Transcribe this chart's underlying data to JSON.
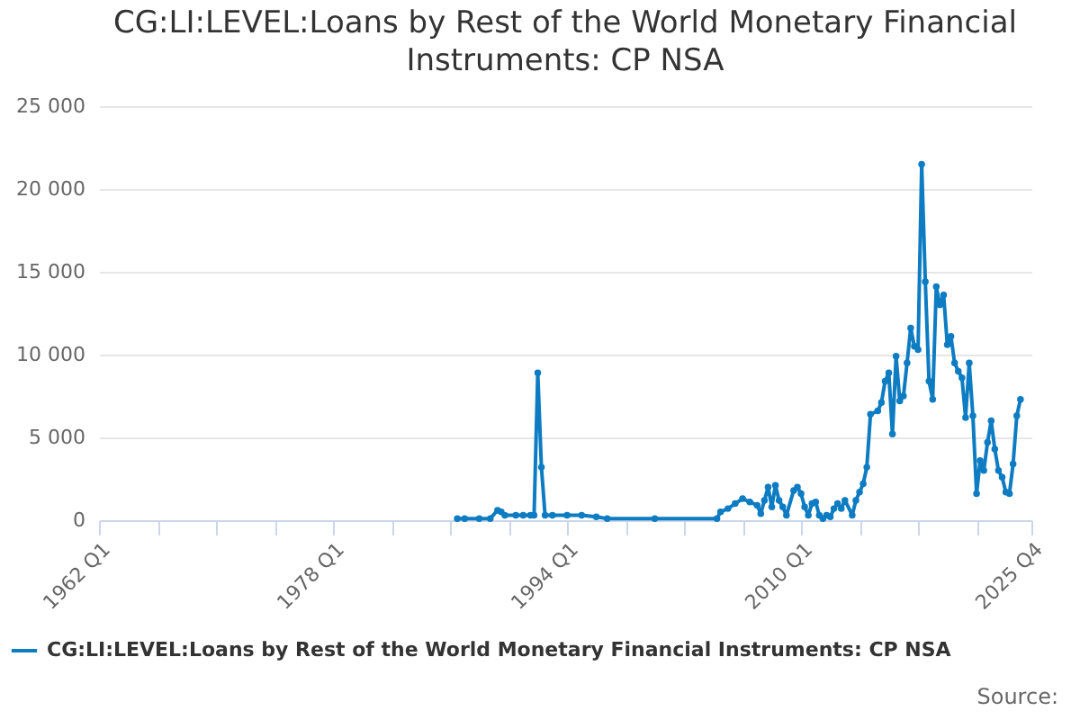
{
  "chart_data": {
    "type": "line",
    "title": "CG:LI:LEVEL:Loans by Rest of the World Monetary Financial Instruments: CP NSA",
    "annotations": [
      "Source:"
    ],
    "x": [
      "1986-07",
      "1987-01",
      "1988-01",
      "1988-10",
      "1989-04",
      "1989-07",
      "1989-10",
      "1990-07",
      "1991-01",
      "1991-07",
      "1991-10",
      "1992-01",
      "1992-04",
      "1992-07",
      "1993-01",
      "1994-01",
      "1995-01",
      "1996-01",
      "1996-10",
      "2000-01",
      "2004-04",
      "2004-07",
      "2005-01",
      "2005-07",
      "2006-01",
      "2006-07",
      "2007-01",
      "2007-04",
      "2007-07",
      "2007-10",
      "2008-01",
      "2008-04",
      "2008-07",
      "2008-10",
      "2009-01",
      "2009-07",
      "2009-10",
      "2010-01",
      "2010-04",
      "2010-07",
      "2010-10",
      "2011-01",
      "2011-04",
      "2011-07",
      "2011-10",
      "2012-01",
      "2012-04",
      "2012-07",
      "2012-10",
      "2013-01",
      "2013-07",
      "2013-10",
      "2014-01",
      "2014-04",
      "2014-07",
      "2014-10",
      "2015-04",
      "2015-07",
      "2015-10",
      "2016-01",
      "2016-04",
      "2016-07",
      "2016-10",
      "2017-01",
      "2017-04",
      "2017-07",
      "2017-10",
      "2018-01",
      "2018-04",
      "2018-07",
      "2018-10",
      "2019-01",
      "2019-04",
      "2019-07",
      "2019-10",
      "2020-01",
      "2020-04",
      "2020-07",
      "2020-10",
      "2021-01",
      "2021-04",
      "2021-07",
      "2021-10",
      "2022-01",
      "2022-04",
      "2022-07",
      "2022-10",
      "2023-01",
      "2023-04",
      "2023-07",
      "2023-10",
      "2024-01",
      "2024-04",
      "2024-07",
      "2024-10",
      "2025-01"
    ],
    "series": [
      {
        "name": "CG:LI:LEVEL:Loans by Rest of the World Monetary Financial Instruments: CP NSA",
        "color": "#0e7cc2",
        "values": [
          100,
          100,
          100,
          100,
          600,
          500,
          300,
          300,
          300,
          300,
          300,
          8900,
          3200,
          300,
          300,
          300,
          300,
          200,
          100,
          100,
          100,
          500,
          700,
          1000,
          1300,
          1100,
          900,
          400,
          1200,
          2000,
          800,
          2100,
          1200,
          800,
          300,
          1800,
          2000,
          1600,
          800,
          300,
          1000,
          1100,
          300,
          100,
          300,
          200,
          700,
          1000,
          700,
          1200,
          300,
          1200,
          1700,
          2200,
          3200,
          6400,
          6600,
          7100,
          8400,
          8900,
          5200,
          9900,
          7200,
          7500,
          9500,
          11600,
          10500,
          10300,
          21500,
          14400,
          8400,
          7300,
          14100,
          13000,
          13600,
          10600,
          11100,
          9500,
          9000,
          8600,
          6200,
          9500,
          6300,
          1600,
          3600,
          3000,
          4700,
          6000,
          4300,
          3000,
          2600,
          1700,
          1600,
          3400,
          6300,
          7300
        ]
      }
    ],
    "xlim": [
      "1962-01",
      "2025-10"
    ],
    "xticks": [
      {
        "value": "1962-01",
        "label": "1962 Q1"
      },
      {
        "value": "1966-01",
        "label": null
      },
      {
        "value": "1970-01",
        "label": null
      },
      {
        "value": "1974-01",
        "label": null
      },
      {
        "value": "1978-01",
        "label": "1978 Q1"
      },
      {
        "value": "1982-01",
        "label": null
      },
      {
        "value": "1986-01",
        "label": null
      },
      {
        "value": "1990-01",
        "label": null
      },
      {
        "value": "1994-01",
        "label": "1994 Q1"
      },
      {
        "value": "1998-01",
        "label": null
      },
      {
        "value": "2002-01",
        "label": null
      },
      {
        "value": "2006-01",
        "label": null
      },
      {
        "value": "2010-01",
        "label": "2010 Q1"
      },
      {
        "value": "2014-01",
        "label": null
      },
      {
        "value": "2018-01",
        "label": null
      },
      {
        "value": "2022-01",
        "label": null
      },
      {
        "value": "2025-10",
        "label": "2025 Q4"
      }
    ],
    "ylim": [
      0,
      25000
    ],
    "yticks": [
      {
        "value": 0,
        "label": "0"
      },
      {
        "value": 5000,
        "label": "5 000"
      },
      {
        "value": 10000,
        "label": "10 000"
      },
      {
        "value": 15000,
        "label": "15 000"
      },
      {
        "value": 20000,
        "label": "20 000"
      },
      {
        "value": 25000,
        "label": "25 000"
      }
    ],
    "grid": "y",
    "legend": "bottom",
    "marker": "circle",
    "line_style": "solid"
  }
}
